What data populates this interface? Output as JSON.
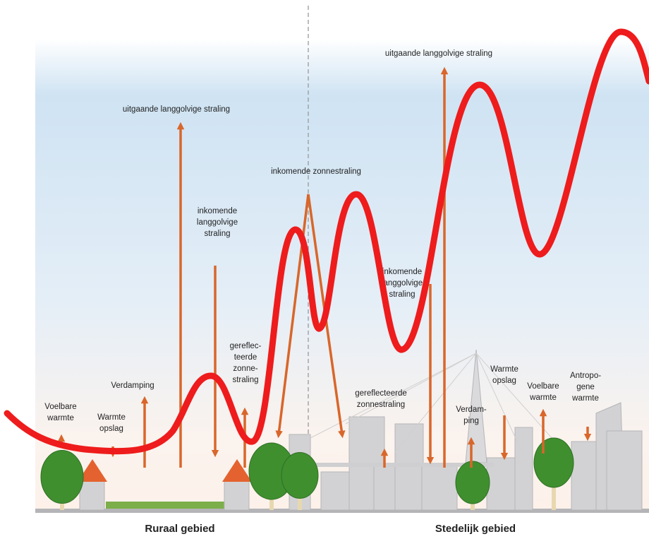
{
  "labels": [
    {
      "lines": [
        "uitgaande langgolvige straling"
      ]
    },
    {
      "lines": [
        "inkomende",
        "langgolvige",
        "straling"
      ]
    },
    {
      "lines": [
        "inkomende zonnestraling"
      ]
    },
    {
      "lines": [
        "gereflec-",
        "teerde",
        "zonne-",
        "straling"
      ]
    },
    {
      "lines": [
        "Verdamping"
      ]
    },
    {
      "lines": [
        "Warmte",
        "opslag"
      ]
    },
    {
      "lines": [
        "Voelbare",
        "warmte"
      ]
    },
    {
      "lines": [
        "uitgaande langgolvige straling"
      ]
    },
    {
      "lines": [
        "inkomende",
        "langgolvige",
        "straling"
      ]
    },
    {
      "lines": [
        "gereflecteerde",
        "zonnestraling"
      ]
    },
    {
      "lines": [
        "Warmte",
        "opslag"
      ]
    },
    {
      "lines": [
        "Verdam-",
        "ping"
      ]
    },
    {
      "lines": [
        "Voelbare",
        "warmte"
      ]
    },
    {
      "lines": [
        "Antropo-",
        "gene",
        "warmte"
      ]
    }
  ],
  "regions": [
    "Ruraal gebied",
    "Stedelijk gebied"
  ]
}
